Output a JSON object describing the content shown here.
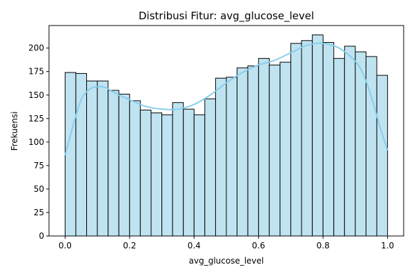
{
  "chart_data": {
    "type": "bar",
    "subtype": "histogram-with-kde",
    "title": "Distribusi Fitur: avg_glucose_level",
    "xlabel": "avg_glucose_level",
    "ylabel": "Frekuensi",
    "xlim": [
      -0.05,
      1.05
    ],
    "ylim": [
      0,
      224
    ],
    "x_ticks": [
      0.0,
      0.2,
      0.4,
      0.6,
      0.8,
      1.0
    ],
    "x_tick_labels": [
      "0.0",
      "0.2",
      "0.4",
      "0.6",
      "0.8",
      "1.0"
    ],
    "y_ticks": [
      0,
      25,
      50,
      75,
      100,
      125,
      150,
      175,
      200
    ],
    "y_tick_labels": [
      "0",
      "25",
      "50",
      "75",
      "100",
      "125",
      "150",
      "175",
      "200"
    ],
    "bin_edges": [
      0.0,
      0.0333,
      0.0667,
      0.1,
      0.1333,
      0.1667,
      0.2,
      0.2333,
      0.2667,
      0.3,
      0.3333,
      0.3667,
      0.4,
      0.4333,
      0.4667,
      0.5,
      0.5333,
      0.5667,
      0.6,
      0.6333,
      0.6667,
      0.7,
      0.7333,
      0.7667,
      0.8,
      0.8333,
      0.8667,
      0.9,
      0.9333,
      0.9667,
      1.0
    ],
    "values": [
      174,
      173,
      165,
      165,
      155,
      151,
      144,
      134,
      131,
      129,
      142,
      135,
      129,
      146,
      168,
      169,
      179,
      181,
      189,
      182,
      185,
      205,
      208,
      214,
      206,
      189,
      202,
      196,
      191,
      171
    ],
    "kde": {
      "x": [
        0.0,
        0.025,
        0.05,
        0.075,
        0.1,
        0.125,
        0.15,
        0.2,
        0.25,
        0.3,
        0.35,
        0.4,
        0.45,
        0.5,
        0.55,
        0.6,
        0.65,
        0.7,
        0.75,
        0.8,
        0.85,
        0.9,
        0.925,
        0.95,
        0.975,
        1.0
      ],
      "y": [
        86,
        118,
        145,
        156,
        159,
        158,
        153,
        145,
        138,
        135,
        135,
        140,
        150,
        163,
        174,
        182,
        187,
        195,
        203,
        205,
        200,
        186,
        172,
        148,
        118,
        91
      ]
    },
    "bar_color": "#bfe3f0",
    "bar_edge_color": "#000000",
    "kde_color": "#87ceeb",
    "grid": false,
    "legend": "none"
  }
}
